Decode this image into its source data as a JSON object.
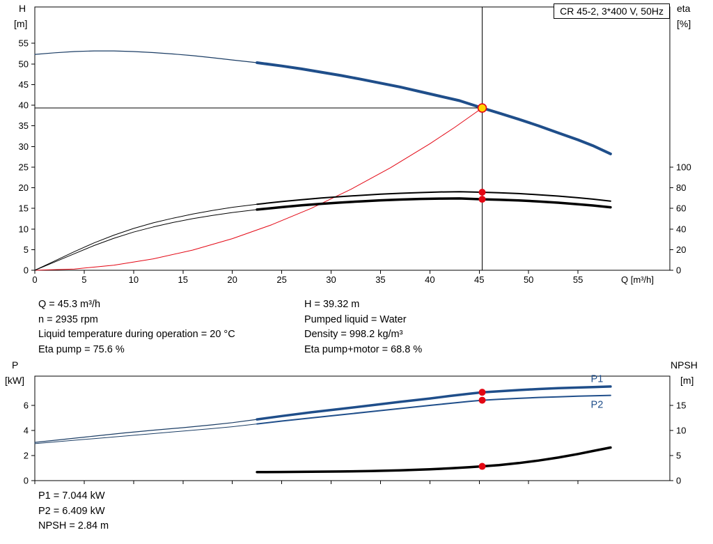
{
  "colors": {
    "blue": "#1f4e8a",
    "dark_blue": "#1a3c64",
    "red": "#e30613",
    "yellow": "#ffd500",
    "black": "#000000"
  },
  "axis_corner_labels": {
    "top_left_1": "H",
    "top_left_2": "[m]",
    "top_right_1": "eta",
    "top_right_2": "[%]",
    "bottom_left_1": "P",
    "bottom_left_2": "[kW]",
    "bottom_right_1": "NPSH",
    "bottom_right_2": "[m]"
  },
  "operating_data": {
    "left": [
      "Q = 45.3 m³/h",
      "n = 2935 rpm",
      "Liquid temperature during operation = 20 °C",
      "Eta pump = 75.6 %"
    ],
    "right": [
      "H = 39.32 m",
      "Pumped liquid = Water",
      "Density = 998.2 kg/m³",
      "Eta pump+motor = 68.8 %"
    ]
  },
  "power_data": [
    "P1 = 7.044 kW",
    "P2 = 6.409 kW",
    "NPSH = 2.84 m"
  ],
  "chart_data": [
    {
      "type": "line",
      "name": "qh-eta-chart",
      "title": "CR 45-2, 3*400 V, 50Hz",
      "x": {
        "label": "Q [m³/h]",
        "min": 0,
        "max": 64.3,
        "ticks": [
          0,
          5,
          10,
          15,
          20,
          25,
          30,
          35,
          40,
          45,
          50,
          55
        ],
        "show_labels": true
      },
      "y_left": {
        "label": "H [m]",
        "min": 0,
        "max": 63.8,
        "ticks": [
          0,
          5,
          10,
          15,
          20,
          25,
          30,
          35,
          40,
          45,
          50,
          55
        ]
      },
      "y_right": {
        "label": "eta [%]",
        "ticks": [
          0,
          20,
          40,
          60,
          80,
          100
        ],
        "left_units_per_right_unit": 0.25
      },
      "series": [
        {
          "name": "qh-curve-low-range",
          "axis": "left",
          "color_key": "dark_blue",
          "width": 1.2,
          "points": [
            [
              0,
              52.3
            ],
            [
              2,
              52.7
            ],
            [
              4,
              53.0
            ],
            [
              6,
              53.15
            ],
            [
              8,
              53.15
            ],
            [
              10,
              53.0
            ],
            [
              12,
              52.75
            ],
            [
              14,
              52.4
            ],
            [
              16,
              52.0
            ],
            [
              18,
              51.5
            ],
            [
              20,
              50.95
            ],
            [
              22.5,
              50.3
            ]
          ]
        },
        {
          "name": "qh-curve",
          "axis": "left",
          "color_key": "blue",
          "width": 4,
          "points": [
            [
              22.5,
              50.3
            ],
            [
              25,
              49.5
            ],
            [
              27,
              48.8
            ],
            [
              29,
              48.0
            ],
            [
              31,
              47.2
            ],
            [
              33,
              46.3
            ],
            [
              35,
              45.35
            ],
            [
              37,
              44.4
            ],
            [
              39,
              43.3
            ],
            [
              41,
              42.2
            ],
            [
              43,
              41.1
            ],
            [
              45.3,
              39.32
            ],
            [
              47,
              38.1
            ],
            [
              49,
              36.6
            ],
            [
              51,
              35.0
            ],
            [
              53,
              33.3
            ],
            [
              55,
              31.6
            ],
            [
              56.5,
              30.2
            ],
            [
              58.3,
              28.2
            ]
          ]
        },
        {
          "name": "system-curve",
          "axis": "left",
          "color_key": "red",
          "width": 1,
          "points": [
            [
              0,
              0
            ],
            [
              4,
              0.31
            ],
            [
              8,
              1.23
            ],
            [
              12,
              2.76
            ],
            [
              16,
              4.9
            ],
            [
              20,
              7.66
            ],
            [
              24,
              11.03
            ],
            [
              28,
              15.01
            ],
            [
              32,
              19.61
            ],
            [
              36,
              24.82
            ],
            [
              40,
              30.65
            ],
            [
              42.5,
              34.6
            ],
            [
              45.3,
              39.32
            ]
          ]
        },
        {
          "name": "eta-pump-low-range",
          "axis": "right",
          "color_key": "black",
          "width": 1,
          "points": [
            [
              0,
              0
            ],
            [
              2,
              9
            ],
            [
              4,
              18
            ],
            [
              6,
              26.5
            ],
            [
              8,
              34
            ],
            [
              10,
              40.5
            ],
            [
              12,
              46
            ],
            [
              14,
              50.5
            ],
            [
              16,
              54.5
            ],
            [
              18,
              58
            ],
            [
              20,
              61
            ],
            [
              22.5,
              64
            ]
          ]
        },
        {
          "name": "eta-pump",
          "axis": "right",
          "color_key": "black",
          "width": 2,
          "points": [
            [
              22.5,
              64
            ],
            [
              25,
              66.6
            ],
            [
              27,
              68.4
            ],
            [
              29,
              70.0
            ],
            [
              31,
              71.4
            ],
            [
              33,
              72.6
            ],
            [
              35,
              73.7
            ],
            [
              37,
              74.6
            ],
            [
              39,
              75.3
            ],
            [
              41,
              75.9
            ],
            [
              43,
              76.1
            ],
            [
              45.3,
              75.6
            ],
            [
              47,
              75.1
            ],
            [
              49,
              74.3
            ],
            [
              51,
              73.2
            ],
            [
              53,
              71.9
            ],
            [
              55,
              70.3
            ],
            [
              56.5,
              68.9
            ],
            [
              58.3,
              67.0
            ]
          ]
        },
        {
          "name": "eta-pump-motor-low-range",
          "axis": "right",
          "color_key": "black",
          "width": 1,
          "points": [
            [
              0,
              0
            ],
            [
              2,
              8
            ],
            [
              4,
              16
            ],
            [
              6,
              24
            ],
            [
              8,
              31
            ],
            [
              10,
              37
            ],
            [
              12,
              42
            ],
            [
              14,
              46.3
            ],
            [
              16,
              50
            ],
            [
              18,
              53.2
            ],
            [
              20,
              56
            ],
            [
              22.5,
              58.8
            ]
          ]
        },
        {
          "name": "eta-pump-motor",
          "axis": "right",
          "color_key": "black",
          "width": 3.5,
          "points": [
            [
              22.5,
              58.8
            ],
            [
              25,
              61.2
            ],
            [
              27,
              62.9
            ],
            [
              29,
              64.4
            ],
            [
              31,
              65.7
            ],
            [
              33,
              66.8
            ],
            [
              35,
              67.8
            ],
            [
              37,
              68.5
            ],
            [
              39,
              69.1
            ],
            [
              41,
              69.5
            ],
            [
              43,
              69.6
            ],
            [
              45.3,
              68.8
            ],
            [
              47,
              68.4
            ],
            [
              49,
              67.7
            ],
            [
              51,
              66.7
            ],
            [
              53,
              65.5
            ],
            [
              55,
              64.0
            ],
            [
              56.5,
              62.8
            ],
            [
              58.3,
              61.0
            ]
          ]
        }
      ],
      "crosshair": {
        "q": 45.3,
        "value": 39.32
      },
      "markers": [
        {
          "name": "duty-point",
          "q": 45.3,
          "value": 39.32,
          "axis": "left",
          "style": "duty"
        },
        {
          "name": "eta-pump-operating-point",
          "q": 45.3,
          "value": 75.6,
          "axis": "right",
          "style": "dot"
        },
        {
          "name": "eta-pump-motor-operating-point",
          "q": 45.3,
          "value": 68.8,
          "axis": "right",
          "style": "dot"
        }
      ],
      "curve_labels": []
    },
    {
      "type": "line",
      "name": "power-npsh-chart",
      "title": "",
      "x": {
        "label": "",
        "min": 0,
        "max": 64.3,
        "ticks": [
          0,
          5,
          10,
          15,
          20,
          25,
          30,
          35,
          40,
          45,
          50,
          55
        ],
        "show_labels": false
      },
      "y_left": {
        "label": "P [kW]",
        "min": 0,
        "max": 8.33,
        "ticks": [
          0,
          2,
          4,
          6
        ]
      },
      "y_right": {
        "label": "NPSH [m]",
        "ticks": [
          0,
          5,
          10,
          15
        ],
        "left_units_per_right_unit": 0.4
      },
      "series": [
        {
          "name": "p1-low-range",
          "axis": "left",
          "color_key": "dark_blue",
          "width": 1.2,
          "points": [
            [
              0,
              3.05
            ],
            [
              3,
              3.3
            ],
            [
              6,
              3.55
            ],
            [
              9,
              3.8
            ],
            [
              12,
              4.02
            ],
            [
              15,
              4.22
            ],
            [
              18,
              4.45
            ],
            [
              20,
              4.62
            ],
            [
              22.5,
              4.88
            ]
          ]
        },
        {
          "name": "p1",
          "axis": "left",
          "color_key": "blue",
          "width": 3.5,
          "points": [
            [
              22.5,
              4.88
            ],
            [
              25,
              5.15
            ],
            [
              28,
              5.45
            ],
            [
              31,
              5.72
            ],
            [
              34,
              6.0
            ],
            [
              37,
              6.28
            ],
            [
              40,
              6.55
            ],
            [
              42,
              6.75
            ],
            [
              44,
              6.93
            ],
            [
              45.3,
              7.044
            ],
            [
              47,
              7.12
            ],
            [
              49,
              7.22
            ],
            [
              51,
              7.3
            ],
            [
              53,
              7.37
            ],
            [
              55,
              7.42
            ],
            [
              56.5,
              7.45
            ],
            [
              58.3,
              7.5
            ]
          ]
        },
        {
          "name": "p2-low-range",
          "axis": "left",
          "color_key": "dark_blue",
          "width": 1,
          "points": [
            [
              0,
              2.95
            ],
            [
              3,
              3.15
            ],
            [
              6,
              3.35
            ],
            [
              9,
              3.55
            ],
            [
              12,
              3.75
            ],
            [
              15,
              3.95
            ],
            [
              18,
              4.15
            ],
            [
              20,
              4.3
            ],
            [
              22.5,
              4.52
            ]
          ]
        },
        {
          "name": "p2",
          "axis": "left",
          "color_key": "blue",
          "width": 2,
          "points": [
            [
              22.5,
              4.52
            ],
            [
              25,
              4.75
            ],
            [
              28,
              5.0
            ],
            [
              31,
              5.25
            ],
            [
              34,
              5.5
            ],
            [
              37,
              5.75
            ],
            [
              40,
              6.0
            ],
            [
              42,
              6.16
            ],
            [
              44,
              6.32
            ],
            [
              45.3,
              6.409
            ],
            [
              47,
              6.48
            ],
            [
              49,
              6.56
            ],
            [
              51,
              6.63
            ],
            [
              53,
              6.68
            ],
            [
              55,
              6.73
            ],
            [
              56.5,
              6.76
            ],
            [
              58.3,
              6.8
            ]
          ]
        },
        {
          "name": "npsh",
          "axis": "right",
          "color_key": "black",
          "width": 3.5,
          "points": [
            [
              22.5,
              1.7
            ],
            [
              25,
              1.72
            ],
            [
              28,
              1.76
            ],
            [
              31,
              1.82
            ],
            [
              34,
              1.92
            ],
            [
              37,
              2.06
            ],
            [
              40,
              2.26
            ],
            [
              42,
              2.44
            ],
            [
              44,
              2.68
            ],
            [
              45.3,
              2.84
            ],
            [
              47,
              3.1
            ],
            [
              49,
              3.5
            ],
            [
              51,
              4.0
            ],
            [
              53,
              4.6
            ],
            [
              55,
              5.3
            ],
            [
              56.5,
              5.9
            ],
            [
              58.3,
              6.6
            ]
          ]
        }
      ],
      "markers": [
        {
          "name": "p1-operating-point",
          "q": 45.3,
          "value": 7.044,
          "axis": "left",
          "style": "dot"
        },
        {
          "name": "p2-operating-point",
          "q": 45.3,
          "value": 6.409,
          "axis": "left",
          "style": "dot"
        },
        {
          "name": "npsh-operating-point",
          "q": 45.3,
          "value": 2.84,
          "axis": "right",
          "style": "dot"
        }
      ],
      "curve_labels": [
        {
          "text": "P1",
          "q": 56.3,
          "value": 7.85,
          "color_key": "blue"
        },
        {
          "text": "P2",
          "q": 56.3,
          "value": 5.8,
          "color_key": "blue"
        }
      ]
    }
  ]
}
